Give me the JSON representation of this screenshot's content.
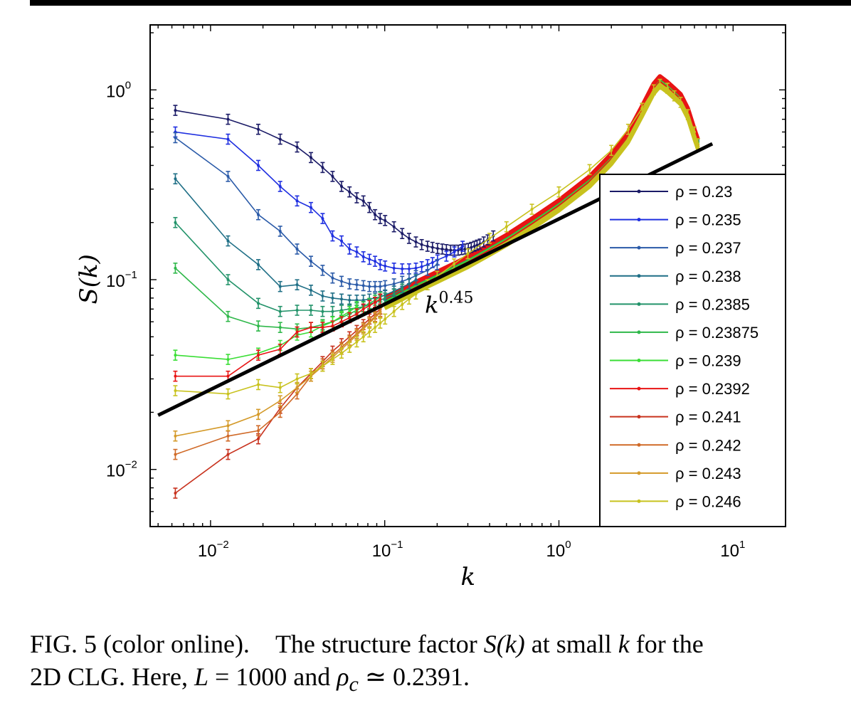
{
  "caption": {
    "label": "FIG. 5 (color online).",
    "line1_text": "The structure factor ",
    "line1_math": "S(k)",
    "line1_mid": " at small ",
    "line1_k": "k",
    "line1_end": " for the",
    "line2_start": "2D CLG. Here, ",
    "line2_L": "L",
    "line2_Lval": " = 1000 and ",
    "line2_rho": "ρ",
    "line2_sub": "c",
    "line2_end": " ≃ 0.2391."
  },
  "chart_data": {
    "type": "line",
    "xlabel": "k",
    "ylabel": "S(k)",
    "xscale": "log",
    "yscale": "log",
    "xlim": [
      0.0045,
      20
    ],
    "ylim": [
      0.005,
      2.2
    ],
    "xticks": [
      {
        "value": 0.01,
        "base": "10",
        "exp": "−2"
      },
      {
        "value": 0.1,
        "base": "10",
        "exp": "−1"
      },
      {
        "value": 1,
        "base": "10",
        "exp": "0"
      },
      {
        "value": 10,
        "base": "10",
        "exp": "1"
      }
    ],
    "yticks": [
      {
        "value": 0.01,
        "base": "10",
        "exp": "−2"
      },
      {
        "value": 0.1,
        "base": "10",
        "exp": "−1"
      },
      {
        "value": 1,
        "base": "10",
        "exp": "0"
      }
    ],
    "legend_position": "lower-right",
    "annotation": {
      "base": "k",
      "exp": "0.45",
      "x": 0.17,
      "y": 0.067
    },
    "reference_line": {
      "label": "k^0.45",
      "exponent": 0.45,
      "x": [
        0.005,
        7.6
      ],
      "y": [
        0.0193,
        0.52
      ],
      "color": "#000000"
    },
    "series": [
      {
        "name": "ρ = 0.23",
        "color": "#1a1a66",
        "x": [
          0.00628,
          0.0126,
          0.0188,
          0.0251,
          0.0314,
          0.0377,
          0.044,
          0.0502,
          0.0565,
          0.0628,
          0.0691,
          0.0754,
          0.0817,
          0.088,
          0.0942,
          0.1005,
          0.113,
          0.126,
          0.138,
          0.151,
          0.163,
          0.176,
          0.188,
          0.201,
          0.214,
          0.226,
          0.239,
          0.251,
          0.264,
          0.276,
          0.289,
          0.302,
          0.314,
          0.327,
          0.339,
          0.352,
          0.37,
          0.39,
          0.42
        ],
        "y": [
          0.78,
          0.7,
          0.62,
          0.55,
          0.5,
          0.44,
          0.39,
          0.35,
          0.31,
          0.29,
          0.27,
          0.26,
          0.24,
          0.22,
          0.21,
          0.205,
          0.19,
          0.175,
          0.165,
          0.158,
          0.153,
          0.15,
          0.148,
          0.146,
          0.145,
          0.144,
          0.143,
          0.143,
          0.143,
          0.144,
          0.145,
          0.146,
          0.148,
          0.15,
          0.152,
          0.154,
          0.158,
          0.162,
          0.17
        ]
      },
      {
        "name": "ρ = 0.235",
        "color": "#1f2fe0",
        "x": [
          0.00628,
          0.0126,
          0.0188,
          0.0251,
          0.0314,
          0.0377,
          0.044,
          0.0502,
          0.0565,
          0.0628,
          0.0691,
          0.0754,
          0.0817,
          0.088,
          0.0942,
          0.1005,
          0.113,
          0.126,
          0.138,
          0.151,
          0.163,
          0.176,
          0.188,
          0.201,
          0.226,
          0.251,
          0.28
        ],
        "y": [
          0.6,
          0.55,
          0.4,
          0.31,
          0.26,
          0.24,
          0.21,
          0.17,
          0.16,
          0.145,
          0.14,
          0.132,
          0.128,
          0.125,
          0.12,
          0.118,
          0.115,
          0.114,
          0.114,
          0.115,
          0.117,
          0.12,
          0.123,
          0.127,
          0.133,
          0.14,
          0.15
        ]
      },
      {
        "name": "ρ = 0.237",
        "color": "#2a5aa8",
        "x": [
          0.00628,
          0.0126,
          0.0188,
          0.0251,
          0.0314,
          0.0377,
          0.044,
          0.0502,
          0.0565,
          0.0628,
          0.0691,
          0.0754,
          0.0817,
          0.088,
          0.0942,
          0.1005,
          0.113,
          0.126,
          0.138,
          0.151,
          0.176,
          0.2
        ],
        "y": [
          0.56,
          0.35,
          0.22,
          0.18,
          0.145,
          0.125,
          0.112,
          0.102,
          0.098,
          0.095,
          0.094,
          0.093,
          0.092,
          0.092,
          0.092,
          0.093,
          0.095,
          0.098,
          0.101,
          0.105,
          0.112,
          0.12
        ]
      },
      {
        "name": "ρ = 0.238",
        "color": "#1f6f86",
        "x": [
          0.00628,
          0.0126,
          0.0188,
          0.0251,
          0.0314,
          0.0377,
          0.044,
          0.0502,
          0.0565,
          0.0628,
          0.0691,
          0.0754,
          0.0817,
          0.088,
          0.0942,
          0.1005,
          0.113,
          0.126,
          0.138,
          0.151
        ],
        "y": [
          0.34,
          0.16,
          0.12,
          0.092,
          0.094,
          0.088,
          0.082,
          0.08,
          0.079,
          0.078,
          0.078,
          0.078,
          0.079,
          0.08,
          0.081,
          0.083,
          0.087,
          0.091,
          0.095,
          0.1
        ]
      },
      {
        "name": "ρ = 0.2385",
        "color": "#23936a",
        "x": [
          0.00628,
          0.0126,
          0.0188,
          0.0251,
          0.0314,
          0.0377,
          0.044,
          0.0502,
          0.0565,
          0.0628,
          0.0691,
          0.0754,
          0.0817,
          0.088,
          0.0942,
          0.1005,
          0.113,
          0.126
        ],
        "y": [
          0.2,
          0.1,
          0.075,
          0.068,
          0.069,
          0.069,
          0.068,
          0.068,
          0.069,
          0.07,
          0.071,
          0.072,
          0.074,
          0.076,
          0.078,
          0.08,
          0.084,
          0.089
        ]
      },
      {
        "name": "ρ = 0.23875",
        "color": "#2fb84a",
        "x": [
          0.00628,
          0.0126,
          0.0188,
          0.0251,
          0.0314,
          0.0377,
          0.044,
          0.0502,
          0.0565,
          0.0628,
          0.0691,
          0.0754,
          0.0817,
          0.088,
          0.0942
        ],
        "y": [
          0.115,
          0.064,
          0.057,
          0.056,
          0.055,
          0.056,
          0.058,
          0.06,
          0.063,
          0.066,
          0.069,
          0.072,
          0.075,
          0.078,
          0.081
        ]
      },
      {
        "name": "ρ = 0.239",
        "color": "#3ade35",
        "x": [
          0.00628,
          0.0126,
          0.0188,
          0.0251,
          0.0314,
          0.0377,
          0.044,
          0.0502,
          0.0565,
          0.0628,
          0.0691
        ],
        "y": [
          0.04,
          0.038,
          0.041,
          0.045,
          0.051,
          0.053,
          0.057,
          0.06,
          0.064,
          0.068,
          0.072
        ]
      },
      {
        "name": "ρ = 0.2392",
        "color": "#e81414",
        "x": [
          0.00628,
          0.0126,
          0.0188,
          0.0251,
          0.0314,
          0.0377,
          0.044,
          0.0502,
          0.0565,
          0.0628,
          0.0691,
          0.0754,
          0.0817,
          0.088,
          0.0942
        ],
        "y": [
          0.031,
          0.031,
          0.04,
          0.043,
          0.053,
          0.056,
          0.056,
          0.057,
          0.06,
          0.063,
          0.066,
          0.07,
          0.073,
          0.076,
          0.079
        ]
      },
      {
        "name": "ρ = 0.241",
        "color": "#c8321e",
        "x": [
          0.00628,
          0.0126,
          0.0188,
          0.0251,
          0.0314,
          0.0377,
          0.044,
          0.0502,
          0.0565,
          0.0628,
          0.0691,
          0.0754,
          0.0817,
          0.088,
          0.0942
        ],
        "y": [
          0.0075,
          0.012,
          0.0145,
          0.021,
          0.027,
          0.032,
          0.037,
          0.042,
          0.046,
          0.05,
          0.054,
          0.058,
          0.062,
          0.066,
          0.07
        ]
      },
      {
        "name": "ρ = 0.242",
        "color": "#d06a28",
        "x": [
          0.00628,
          0.0126,
          0.0188,
          0.0251,
          0.0314,
          0.0377,
          0.044,
          0.0502,
          0.0565,
          0.0628,
          0.0691,
          0.0754,
          0.0817,
          0.088,
          0.0942
        ],
        "y": [
          0.012,
          0.015,
          0.016,
          0.02,
          0.025,
          0.031,
          0.036,
          0.04,
          0.044,
          0.048,
          0.052,
          0.056,
          0.06,
          0.064,
          0.068
        ]
      },
      {
        "name": "ρ = 0.243",
        "color": "#d49a2a",
        "x": [
          0.00628,
          0.0126,
          0.0188,
          0.0251,
          0.0314,
          0.0377,
          0.044,
          0.0502,
          0.0565,
          0.0628,
          0.0691,
          0.0754,
          0.0817,
          0.088,
          0.0942
        ],
        "y": [
          0.015,
          0.017,
          0.0195,
          0.023,
          0.027,
          0.031,
          0.035,
          0.039,
          0.043,
          0.047,
          0.051,
          0.055,
          0.059,
          0.063,
          0.067
        ]
      },
      {
        "name": "ρ = 0.246",
        "color": "#c8c21e",
        "x": [
          0.00628,
          0.0126,
          0.0188,
          0.0251,
          0.0314,
          0.0377,
          0.044,
          0.0502,
          0.0565,
          0.0628,
          0.0691,
          0.0754,
          0.0817,
          0.088,
          0.0942,
          0.1005,
          0.113,
          0.126,
          0.138,
          0.151,
          0.176,
          0.2,
          0.25,
          0.3,
          0.4,
          0.5,
          0.7,
          1.0,
          1.5,
          2.0,
          2.5,
          3.0,
          3.5,
          3.8,
          4.2,
          4.6,
          5.0,
          5.5,
          6.0,
          6.28
        ],
        "y": [
          0.026,
          0.025,
          0.028,
          0.027,
          0.03,
          0.032,
          0.035,
          0.038,
          0.041,
          0.044,
          0.047,
          0.05,
          0.053,
          0.056,
          0.059,
          0.062,
          0.068,
          0.074,
          0.079,
          0.084,
          0.094,
          0.104,
          0.121,
          0.137,
          0.165,
          0.19,
          0.235,
          0.29,
          0.38,
          0.48,
          0.62,
          0.8,
          1.0,
          1.07,
          1.02,
          0.93,
          0.86,
          0.74,
          0.6,
          0.52
        ]
      }
    ],
    "high_k": {
      "x": [
        0.1,
        0.15,
        0.2,
        0.3,
        0.4,
        0.5,
        0.7,
        1.0,
        1.5,
        2.0,
        2.5,
        3.0,
        3.5,
        3.8,
        4.2,
        4.6,
        5.0,
        5.5,
        6.0,
        6.28
      ],
      "red": [
        0.08,
        0.097,
        0.11,
        0.132,
        0.153,
        0.172,
        0.21,
        0.262,
        0.35,
        0.46,
        0.6,
        0.82,
        1.08,
        1.18,
        1.1,
        1.02,
        0.95,
        0.8,
        0.62,
        0.55
      ],
      "note": "crowded overlapping curves beyond k≈0.1"
    }
  }
}
